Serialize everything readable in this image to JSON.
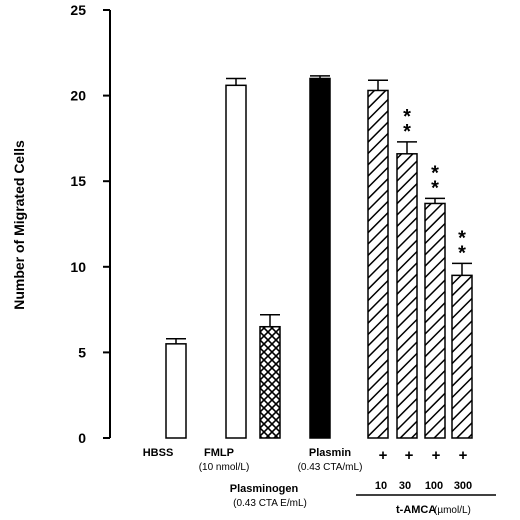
{
  "chart_data": {
    "type": "bar",
    "ylabel": "Number of Migrated Cells",
    "ylim": [
      0,
      25
    ],
    "y_ticks": [
      "0",
      "5",
      "10",
      "15",
      "20",
      "25"
    ],
    "bars": [
      {
        "value": 5.5,
        "error": 0.3,
        "fill": "white"
      },
      {
        "value": 20.6,
        "error": 0.4,
        "fill": "white"
      },
      {
        "value": 6.5,
        "error": 0.7,
        "fill": "crosshatch"
      },
      {
        "value": 21.0,
        "error": 0.15,
        "fill": "black"
      },
      {
        "value": 20.3,
        "error": 0.6,
        "fill": "diagonal",
        "sig": "",
        "conc": "10"
      },
      {
        "value": 16.6,
        "error": 0.7,
        "fill": "diagonal",
        "sig": "**",
        "conc": "30"
      },
      {
        "value": 13.7,
        "error": 0.3,
        "fill": "diagonal",
        "sig": "**",
        "conc": "100"
      },
      {
        "value": 9.5,
        "error": 0.7,
        "fill": "diagonal",
        "sig": "**",
        "conc": "300"
      }
    ],
    "labels": {
      "hbss": "HBSS",
      "fmlp": "FMLP",
      "fmlp_sub": "(10 nmol/L)",
      "plasminogen": "Plasminogen",
      "plasminogen_sub": "(0.43 CTA E/mL)",
      "plasmin": "Plasmin",
      "plasmin_sub": "(0.43 CTA/mL)",
      "plus": "+",
      "tamca": "t-AMCA",
      "tamca_unit": "(µmol/L)"
    },
    "colors": {
      "axis": "#000000",
      "bar_stroke": "#000000",
      "background": "#ffffff"
    }
  }
}
